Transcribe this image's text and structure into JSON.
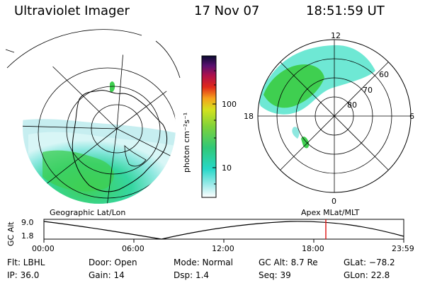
{
  "header": {
    "title": "Ultraviolet Imager",
    "date": "17 Nov 07",
    "time": "18:51:59 UT"
  },
  "colorbar": {
    "labels": [
      "100",
      "10"
    ],
    "units": "photon cm⁻²s⁻¹",
    "colors": [
      "#ffffff",
      "#a8ecec",
      "#27d8c8",
      "#30c878",
      "#7ed23a",
      "#d4e21e",
      "#f6a21c",
      "#e0281a",
      "#b0104a",
      "#5a1070",
      "#0a0a30"
    ]
  },
  "magnetic": {
    "mlt_labels": [
      "12",
      "18",
      "6",
      "0"
    ],
    "mlat_labels": [
      "60",
      "70",
      "80"
    ]
  },
  "captions": {
    "geographic": "Geographic Lat/Lon",
    "magnetic": "Apex  MLat/MLT"
  },
  "altitude": {
    "ylabel": "GC Alt",
    "y_max": "9.0",
    "y_min": "1.8",
    "time_labels": [
      "00:00",
      "06:00",
      "12:00",
      "18:00",
      "23:59"
    ],
    "marker_color": "#e02020"
  },
  "info": {
    "row1": [
      "Flt: LBHL",
      "Door: Open",
      "Mode: Normal",
      "GC Alt: 8.7 Re",
      "GLat: −78.2"
    ],
    "row2": [
      "IP: 36.0",
      "Gain: 14",
      "Dsp:    1.4",
      "Seq: 39",
      "GLon:  22.8"
    ]
  }
}
